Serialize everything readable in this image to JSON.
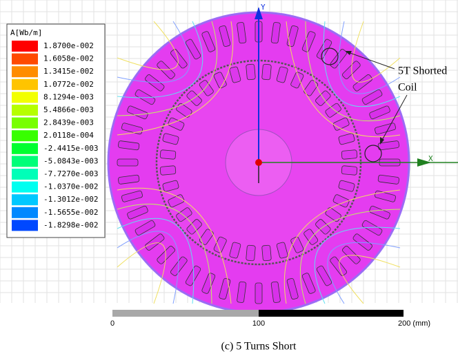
{
  "legend": {
    "title": "A[Wb/m]",
    "entries": [
      {
        "label": "1.8700e-002",
        "color": "#ff0000"
      },
      {
        "label": "1.6058e-002",
        "color": "#ff4a00"
      },
      {
        "label": "1.3415e-002",
        "color": "#ff8c00"
      },
      {
        "label": "1.0772e-002",
        "color": "#ffc400"
      },
      {
        "label": "8.1294e-003",
        "color": "#f2ff00"
      },
      {
        "label": "5.4866e-003",
        "color": "#b6ff00"
      },
      {
        "label": "2.8439e-003",
        "color": "#78ff00"
      },
      {
        "label": "2.0118e-004",
        "color": "#38ff00"
      },
      {
        "label": "-2.4415e-003",
        "color": "#00ff30"
      },
      {
        "label": "-5.0843e-003",
        "color": "#00ff78"
      },
      {
        "label": "-7.7270e-003",
        "color": "#00ffb8"
      },
      {
        "label": "-1.0370e-002",
        "color": "#00fff0"
      },
      {
        "label": "-1.3012e-002",
        "color": "#00c8ff"
      },
      {
        "label": "-1.5655e-002",
        "color": "#0088ff"
      },
      {
        "label": "-1.8298e-002",
        "color": "#0048ff"
      }
    ]
  },
  "annotation": {
    "lines": [
      "5T Shorted",
      "Coil"
    ]
  },
  "axes": {
    "y": "Y",
    "x": "X"
  },
  "scale": {
    "labels": [
      "0",
      "100",
      "200 (mm)"
    ]
  },
  "caption": "(c) 5 Turns Short"
}
